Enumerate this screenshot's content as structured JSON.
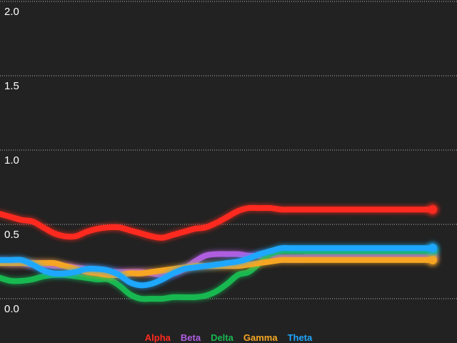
{
  "chart_data": {
    "type": "line",
    "title": "",
    "xlabel": "",
    "ylabel": "",
    "ylim": [
      0,
      2
    ],
    "yticks": [
      "0.0",
      "0.5",
      "1.0",
      "1.5",
      "2.0"
    ],
    "grid": true,
    "legend_placement": "bottom-center",
    "background": "#222222",
    "x": [
      0,
      1,
      2,
      3,
      4,
      5,
      6,
      7,
      8,
      9,
      10,
      11,
      12,
      13,
      14,
      15,
      16,
      17,
      18,
      19,
      20,
      21,
      22,
      23,
      24,
      25,
      26,
      27,
      28,
      29,
      30,
      31,
      32,
      33,
      34,
      35,
      36,
      37,
      38,
      39,
      40
    ],
    "series": [
      {
        "name": "Alpha",
        "color": "#ff2a1f",
        "values": [
          0.57,
          0.55,
          0.53,
          0.52,
          0.48,
          0.44,
          0.42,
          0.42,
          0.45,
          0.47,
          0.48,
          0.48,
          0.46,
          0.44,
          0.42,
          0.41,
          0.43,
          0.45,
          0.47,
          0.48,
          0.51,
          0.55,
          0.59,
          0.61,
          0.61,
          0.61,
          0.6,
          0.6,
          0.6,
          0.6,
          0.6,
          0.6,
          0.6,
          0.6,
          0.6,
          0.6,
          0.6,
          0.6,
          0.6,
          0.6,
          0.6
        ]
      },
      {
        "name": "Beta",
        "color": "#b05ee0",
        "values": [
          0.25,
          0.24,
          0.24,
          0.23,
          0.23,
          0.22,
          0.22,
          0.21,
          0.2,
          0.19,
          0.18,
          0.18,
          0.18,
          0.18,
          0.17,
          0.16,
          0.17,
          0.2,
          0.25,
          0.29,
          0.3,
          0.3,
          0.3,
          0.29,
          0.29,
          0.29,
          0.28,
          0.28,
          0.28,
          0.29,
          0.29,
          0.29,
          0.29,
          0.29,
          0.29,
          0.29,
          0.29,
          0.29,
          0.29,
          0.29,
          0.29
        ]
      },
      {
        "name": "Delta",
        "color": "#18b851",
        "values": [
          0.14,
          0.12,
          0.12,
          0.13,
          0.15,
          0.16,
          0.16,
          0.15,
          0.14,
          0.13,
          0.13,
          0.09,
          0.03,
          0.0,
          0.0,
          0.0,
          0.01,
          0.01,
          0.01,
          0.02,
          0.05,
          0.1,
          0.16,
          0.18,
          0.24,
          0.3,
          0.32,
          0.32,
          0.32,
          0.32,
          0.32,
          0.32,
          0.32,
          0.32,
          0.32,
          0.32,
          0.32,
          0.32,
          0.32,
          0.32,
          0.32
        ]
      },
      {
        "name": "Gamma",
        "color": "#f6a623",
        "values": [
          0.24,
          0.24,
          0.24,
          0.24,
          0.24,
          0.24,
          0.22,
          0.2,
          0.18,
          0.17,
          0.16,
          0.16,
          0.17,
          0.17,
          0.18,
          0.19,
          0.2,
          0.21,
          0.22,
          0.22,
          0.22,
          0.22,
          0.22,
          0.23,
          0.24,
          0.25,
          0.26,
          0.26,
          0.26,
          0.26,
          0.26,
          0.26,
          0.26,
          0.26,
          0.26,
          0.26,
          0.26,
          0.26,
          0.26,
          0.26,
          0.26
        ]
      },
      {
        "name": "Theta",
        "color": "#1ea7ff",
        "values": [
          0.26,
          0.26,
          0.26,
          0.23,
          0.19,
          0.17,
          0.17,
          0.18,
          0.2,
          0.2,
          0.19,
          0.16,
          0.11,
          0.09,
          0.1,
          0.13,
          0.17,
          0.2,
          0.21,
          0.22,
          0.23,
          0.24,
          0.25,
          0.27,
          0.3,
          0.32,
          0.34,
          0.34,
          0.34,
          0.34,
          0.34,
          0.34,
          0.34,
          0.34,
          0.34,
          0.34,
          0.34,
          0.34,
          0.34,
          0.34,
          0.34
        ]
      }
    ]
  }
}
